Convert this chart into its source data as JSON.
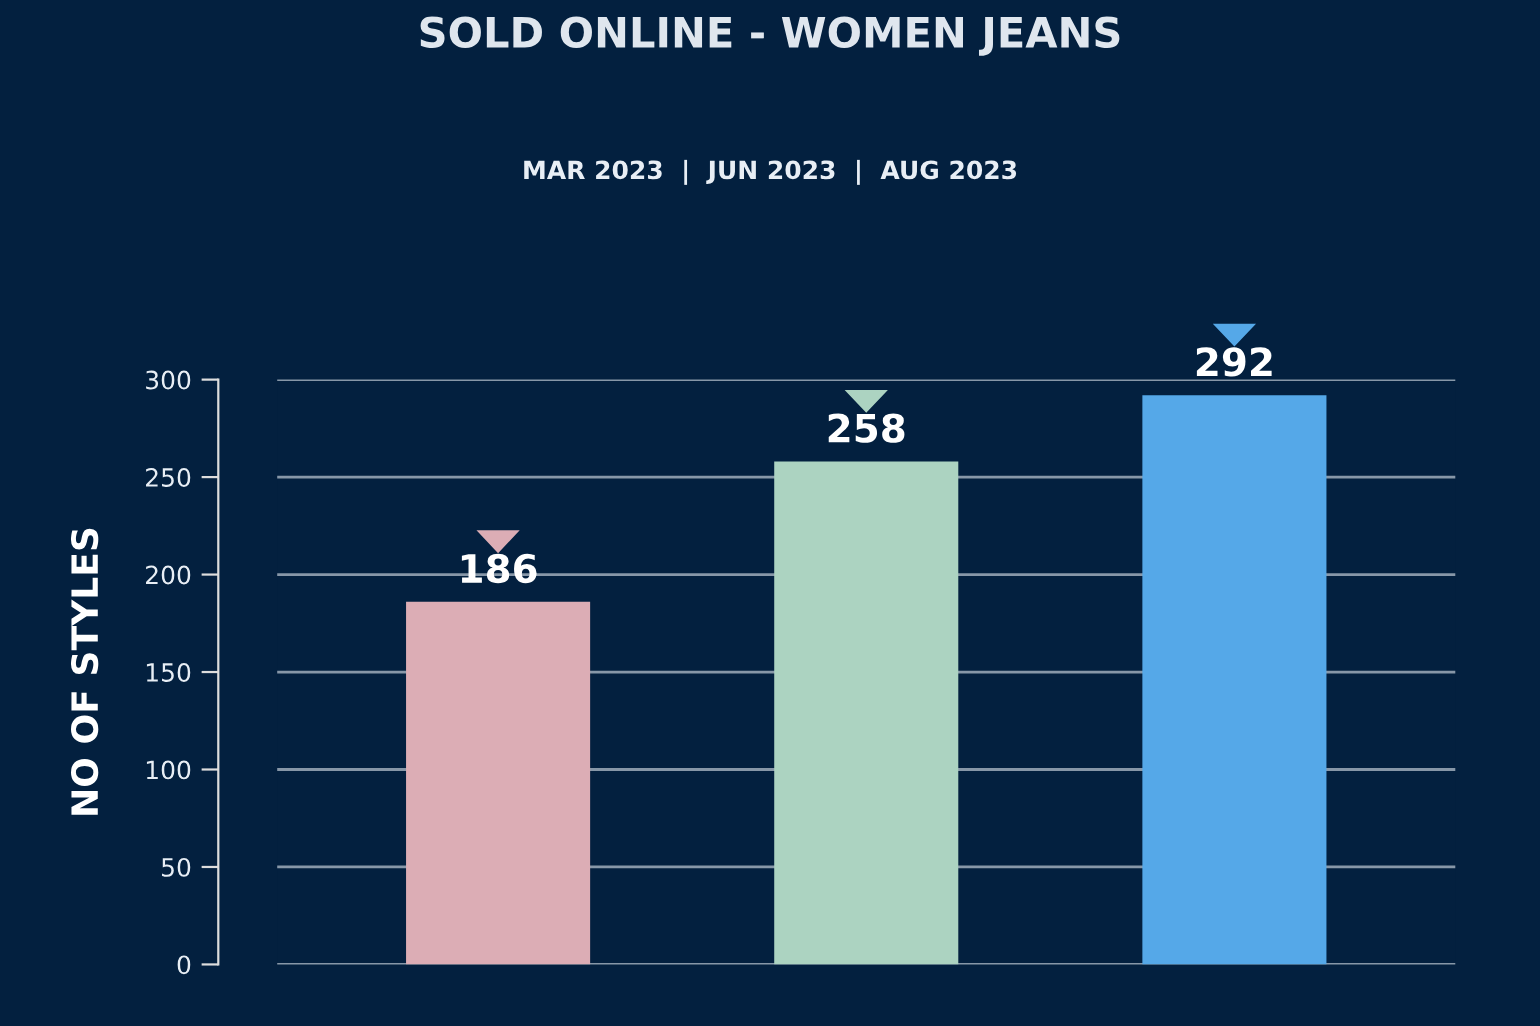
{
  "chart_data": {
    "type": "bar",
    "title": "SOLD ONLINE - WOMEN JEANS",
    "subtitle": "MAR 2023  |  JUN 2023  |  AUG 2023",
    "ylabel": "NO OF STYLES",
    "categories": [
      null,
      null,
      null
    ],
    "values": [
      186,
      258,
      292
    ],
    "colors": [
      "#dcadb5",
      "#acd3c1",
      "#55a8e8"
    ],
    "ylim": [
      0,
      300
    ],
    "yticks": [
      0,
      50,
      100,
      150,
      200,
      250,
      300
    ],
    "grid": "y",
    "data_labels": true
  }
}
